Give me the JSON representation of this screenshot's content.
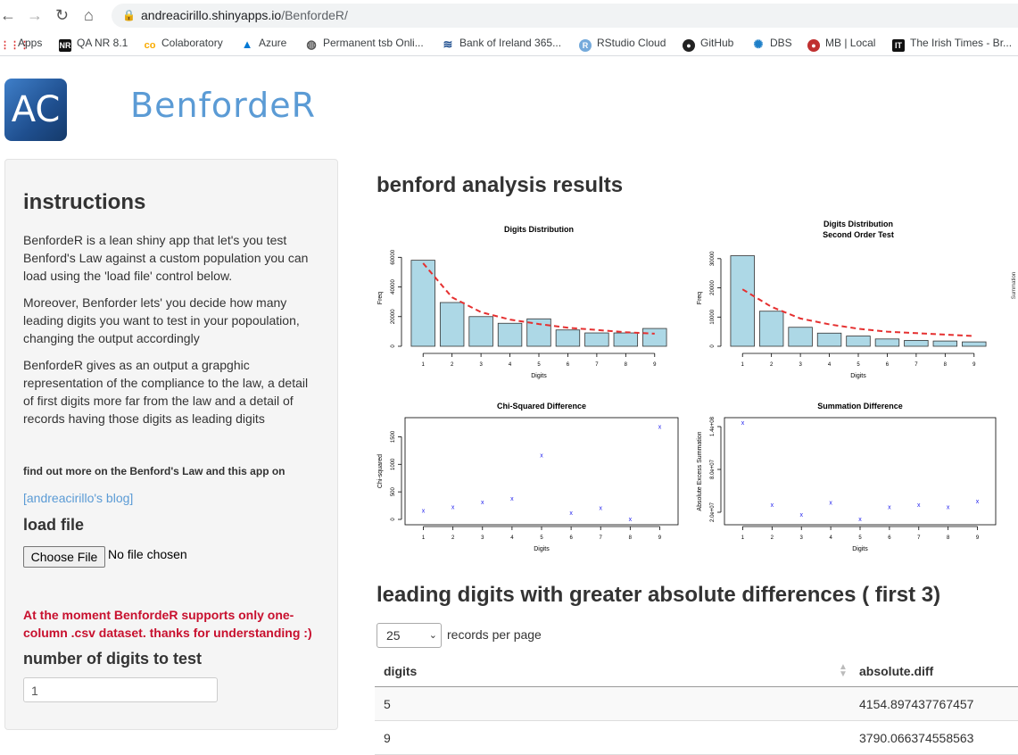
{
  "browser": {
    "url_host": "andreacirillo.shinyapps.io",
    "url_path": "/BenfordeR/",
    "bookmarks": [
      {
        "label": "Apps",
        "icon": "apps-grid-icon"
      },
      {
        "label": "QA NR 8.1",
        "icon": "nr-icon"
      },
      {
        "label": "Colaboratory",
        "icon": "colab-icon"
      },
      {
        "label": "Azure",
        "icon": "azure-icon"
      },
      {
        "label": "Permanent tsb Onli...",
        "icon": "globe-icon"
      },
      {
        "label": "Bank of Ireland 365...",
        "icon": "bank-icon"
      },
      {
        "label": "RStudio Cloud",
        "icon": "rstudio-icon"
      },
      {
        "label": "GitHub",
        "icon": "github-icon"
      },
      {
        "label": "DBS",
        "icon": "dbs-icon"
      },
      {
        "label": "MB | Local",
        "icon": "mb-icon"
      },
      {
        "label": "The Irish Times - Br...",
        "icon": "irish-times-icon"
      }
    ]
  },
  "app": {
    "logo_text": "AC",
    "title": "BenfordeR"
  },
  "sidebar": {
    "heading": "instructions",
    "para1": "BenfordeR is a lean shiny app that let's you test Benford's Law against a custom population you can load using the 'load file' control below.",
    "para2": "Moreover, Benforder lets' you decide how many leading digits you want to test in your popoulation, changing the output accordingly",
    "para3": "BenfordeR gives as an output a grapghic representation of the compliance to the law, a detail of first digits more far from the law and a detail of records having those digits as leading digits",
    "more_info": "find out more on the Benford's Law and this app on",
    "blog_link": "[andreacirillo's blog]",
    "load_file_label": "load file",
    "choose_file_button": "Choose File",
    "file_status": "No file chosen",
    "warning": "At the moment BenfordeR supports only one-column .csv dataset. thanks for understanding :)",
    "digits_label": "number of digits to test",
    "digits_value": "1"
  },
  "main": {
    "results_heading": "benford analysis results",
    "table_heading": "leading digits with greater absolute differences ( first 3)",
    "rpp_value": "25",
    "rpp_label": "records per page",
    "table": {
      "columns": [
        "digits",
        "absolute.diff"
      ],
      "rows": [
        [
          "5",
          "4154.897437767457"
        ],
        [
          "9",
          "3790.066374558563"
        ]
      ]
    }
  },
  "chart_data": [
    {
      "type": "bar",
      "title": "Digits Distribution",
      "xlabel": "Digits",
      "ylabel": "Freq",
      "categories": [
        "1",
        "2",
        "3",
        "4",
        "5",
        "6",
        "7",
        "8",
        "9"
      ],
      "series": [
        {
          "values": [
            58000,
            29500,
            20000,
            15500,
            18500,
            11000,
            9000,
            9000,
            12000
          ]
        }
      ],
      "expected": [
        56000,
        33000,
        23000,
        18000,
        15000,
        12500,
        11000,
        9500,
        8500
      ],
      "ylim": [
        0,
        65000
      ],
      "yticks": [
        0,
        20000,
        40000,
        60000
      ],
      "color_bars": "#add8e6",
      "color_expected": "#e53030"
    },
    {
      "type": "bar",
      "title": "Digits Distribution",
      "subtitle": "Second Order Test",
      "xlabel": "Digits",
      "ylabel": "Freq",
      "categories": [
        "1",
        "2",
        "3",
        "4",
        "5",
        "6",
        "7",
        "8",
        "9"
      ],
      "series": [
        {
          "values": [
            31000,
            12000,
            6500,
            4500,
            3500,
            2500,
            2000,
            1800,
            1500
          ]
        }
      ],
      "expected": [
        19500,
        13500,
        9500,
        7500,
        6000,
        5000,
        4500,
        4000,
        3500
      ],
      "ylim": [
        0,
        33000
      ],
      "yticks": [
        0,
        10000,
        20000,
        30000
      ],
      "color_bars": "#add8e6",
      "color_expected": "#e53030"
    },
    {
      "type": "scatter",
      "title": "Chi-Squared Difference",
      "xlabel": "Digits",
      "ylabel": "Chi-squared",
      "x": [
        1,
        2,
        3,
        4,
        5,
        6,
        7,
        8,
        9
      ],
      "y": [
        150,
        220,
        310,
        370,
        1160,
        110,
        200,
        0,
        1680
      ],
      "ylim": [
        0,
        1750
      ],
      "yticks": [
        0,
        500,
        1000,
        1500
      ],
      "color_points": "#2222ee"
    },
    {
      "type": "scatter",
      "title": "Summation Difference",
      "xlabel": "Digits",
      "ylabel": "Absolute Excess Summation",
      "x": [
        1,
        2,
        3,
        4,
        5,
        6,
        7,
        8,
        9
      ],
      "y": [
        145000000.0,
        30000000.0,
        16000000.0,
        33000000.0,
        10000000.0,
        27000000.0,
        30000000.0,
        27000000.0,
        35000000.0
      ],
      "ylim": [
        10000000.0,
        145000000.0
      ],
      "yticks": [
        20000000.0,
        80000000.0,
        140000000.0
      ],
      "yticklabels": [
        "2.0e+07",
        "8.0e+07",
        "1.4e+08"
      ],
      "color_points": "#2222ee"
    }
  ]
}
